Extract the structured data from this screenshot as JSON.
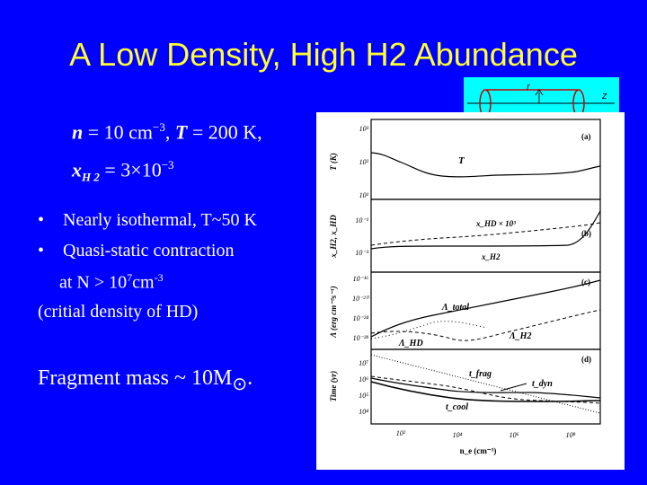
{
  "title": "A Low Density, High H2 Abundance",
  "cylinder_labels": {
    "r": "r",
    "z": "z"
  },
  "equation1": {
    "n_sym": "n",
    "n_val": "= 10 cm",
    "n_exp": "−3",
    "sep": ",",
    "T_sym": "T",
    "T_val": "= 200 K,"
  },
  "equation2": {
    "x_sym": "x",
    "x_sub": "H 2",
    "x_val": "= 3×10",
    "x_exp": "−3"
  },
  "bullets": [
    {
      "marker": "•",
      "text": "Nearly isothermal, T~50 K"
    },
    {
      "marker": "•",
      "text": "Quasi-static contraction"
    }
  ],
  "continuation": {
    "text": "at N > 10",
    "sup": "7",
    "unit": "cm",
    "unit_sup": "-3"
  },
  "critical": "(critial density of HD)",
  "fragment": {
    "text": "Fragment mass ~ 10M",
    "symbol": "⊙",
    "end": "."
  },
  "figure": {
    "panel_letters": [
      "(a)",
      "(b)",
      "(c)",
      "(d)"
    ],
    "ylabels": [
      "T (K)",
      "x_H2, x_HD",
      "Λ (erg cm⁻³s⁻¹)",
      "Time (yr)"
    ],
    "xlabel": "n_e (cm⁻³)",
    "yticks_a": [
      "10³",
      "10²",
      "10¹"
    ],
    "yticks_b": [
      "10⁻¹",
      "10⁻³"
    ],
    "yticks_c": [
      "10⁻¹⁶",
      "10⁻²⁰",
      "10⁻²⁴",
      "10⁻²⁸"
    ],
    "yticks_d": [
      "10⁷",
      "10⁶",
      "10⁵",
      "10⁴"
    ],
    "xticks": [
      "10²",
      "10⁴",
      "10⁶",
      "10⁸"
    ],
    "curve_labels": {
      "T": "T",
      "xHD": "x_HD × 10³",
      "xH2": "x_H2",
      "Ltotal": "Λ_total",
      "LHD": "Λ_HD",
      "LH2": "Λ_H2",
      "tfrag": "t_frag",
      "tdyn": "t_dyn",
      "tcool": "t_cool"
    }
  },
  "colors": {
    "background": "#0000ff",
    "title": "#ffff33",
    "text": "#ffffff",
    "cylinder_box": "#00ffff",
    "cylinder": "#cc0000"
  }
}
